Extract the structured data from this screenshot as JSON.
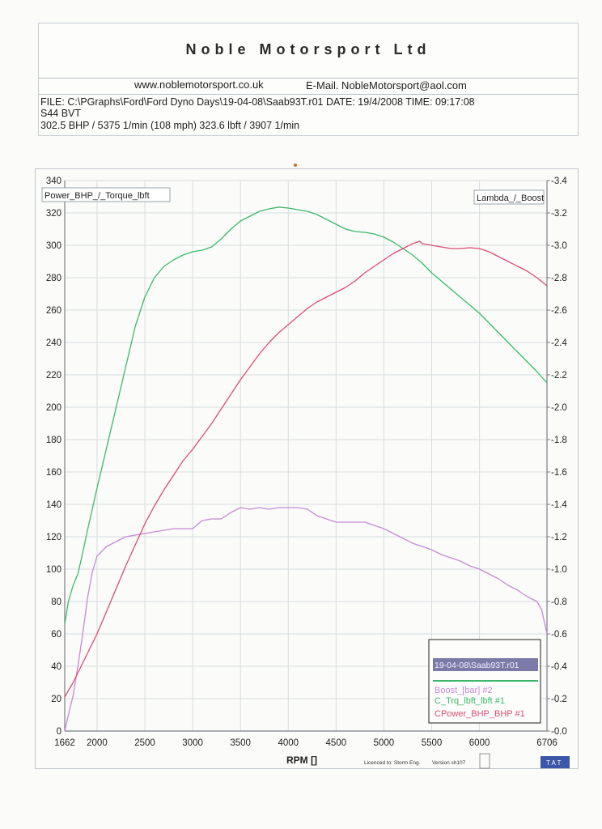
{
  "header": {
    "company": "Noble Motorsport Ltd",
    "website": "www.noblemotorsport.co.uk",
    "email": "E-Mail. NobleMotorsport@aol.com",
    "file_line": "FILE: C:\\PGraphs\\Ford\\Ford Dyno Days\\19-04-08\\Saab93T.r01  DATE: 19/4/2008  TIME: 09:17:08",
    "vehicle": "S44 BVT",
    "summary": "302.5 BHP / 5375 1/min (108 mph)    323.6 lbft / 3907 1/min"
  },
  "chart_data": {
    "type": "line",
    "left_axis_label": "Power_BHP_/_Torque_lbft",
    "right_axis_label": "Lambda_/_Boost",
    "xlabel": "RPM  []",
    "xlim": [
      1662,
      6706
    ],
    "x_ticks": [
      "1662",
      "2000",
      "2500",
      "3000",
      "3500",
      "4000",
      "4500",
      "5000",
      "5500",
      "6000",
      "6706"
    ],
    "x_tick_values": [
      1662,
      2000,
      2500,
      3000,
      3500,
      4000,
      4500,
      5000,
      5500,
      6000,
      6706
    ],
    "ylim_left": [
      0,
      340
    ],
    "y_ticks_left": [
      "0",
      "20",
      "40",
      "60",
      "80",
      "100",
      "120",
      "140",
      "160",
      "180",
      "200",
      "220",
      "240",
      "260",
      "280",
      "300",
      "320",
      "340"
    ],
    "ylim_right": [
      0,
      -3.4
    ],
    "y_ticks_right": [
      "-0.0",
      "-0.2",
      "-0.4",
      "-0.6",
      "-0.8",
      "-1.0",
      "-1.2",
      "-1.4",
      "-1.6",
      "-1.8",
      "-2.0",
      "-2.2",
      "-2.4",
      "-2.6",
      "-2.8",
      "-3.0",
      "-3.2",
      "-3.4"
    ],
    "grid": true,
    "legend_position": "bottom-right",
    "legend_title": "19-04-08\\Saab93T.r01",
    "series": [
      {
        "name": "Boost_[bar] #2",
        "color": "#c58ad6",
        "x": [
          1662,
          1700,
          1750,
          1800,
          1850,
          1900,
          1950,
          2000,
          2100,
          2200,
          2300,
          2400,
          2500,
          2600,
          2700,
          2800,
          2900,
          3000,
          3100,
          3200,
          3300,
          3400,
          3500,
          3600,
          3700,
          3800,
          3900,
          4000,
          4100,
          4200,
          4300,
          4400,
          4500,
          4600,
          4700,
          4800,
          4900,
          5000,
          5100,
          5200,
          5300,
          5400,
          5500,
          5600,
          5700,
          5800,
          5900,
          6000,
          6100,
          6200,
          6300,
          6400,
          6500,
          6600,
          6650,
          6706
        ],
        "values": [
          -0.0,
          -0.1,
          -0.22,
          -0.4,
          -0.6,
          -0.82,
          -0.98,
          -1.08,
          -1.14,
          -1.17,
          -1.2,
          -1.21,
          -1.22,
          -1.23,
          -1.24,
          -1.25,
          -1.25,
          -1.25,
          -1.3,
          -1.31,
          -1.31,
          -1.35,
          -1.38,
          -1.37,
          -1.38,
          -1.37,
          -1.38,
          -1.38,
          -1.38,
          -1.37,
          -1.33,
          -1.31,
          -1.29,
          -1.29,
          -1.29,
          -1.29,
          -1.27,
          -1.25,
          -1.22,
          -1.19,
          -1.16,
          -1.14,
          -1.12,
          -1.09,
          -1.07,
          -1.05,
          -1.02,
          -1.0,
          -0.97,
          -0.94,
          -0.9,
          -0.87,
          -0.83,
          -0.8,
          -0.75,
          -0.6
        ]
      },
      {
        "name": "C_Trq_lbft_lbft #1",
        "color": "#3db86b",
        "x": [
          1662,
          1700,
          1750,
          1800,
          1850,
          1900,
          1950,
          2000,
          2100,
          2200,
          2300,
          2400,
          2500,
          2600,
          2700,
          2800,
          2900,
          3000,
          3100,
          3200,
          3300,
          3400,
          3500,
          3600,
          3700,
          3800,
          3900,
          4000,
          4100,
          4200,
          4300,
          4400,
          4500,
          4600,
          4700,
          4800,
          4900,
          5000,
          5100,
          5200,
          5300,
          5400,
          5500,
          5600,
          5700,
          5800,
          5900,
          6000,
          6100,
          6200,
          6300,
          6400,
          6500,
          6600,
          6706
        ],
        "values": [
          66,
          80,
          90,
          97,
          110,
          124,
          137,
          150,
          175,
          200,
          225,
          250,
          268,
          280,
          287,
          291,
          294,
          296,
          297,
          299,
          304,
          310,
          315,
          318,
          321,
          322.5,
          323.6,
          323,
          322,
          321,
          319,
          316,
          313,
          310,
          308.5,
          308,
          307,
          305,
          302,
          298,
          294,
          289,
          283,
          278,
          273,
          268,
          263,
          258,
          252,
          246,
          240,
          234,
          228,
          222,
          215
        ]
      },
      {
        "name": "CPower_BHP_BHP #1",
        "color": "#d94d72",
        "x": [
          1662,
          1700,
          1750,
          1800,
          1850,
          1900,
          1950,
          2000,
          2100,
          2200,
          2300,
          2400,
          2500,
          2600,
          2700,
          2800,
          2900,
          3000,
          3100,
          3200,
          3300,
          3400,
          3500,
          3600,
          3700,
          3800,
          3900,
          4000,
          4100,
          4200,
          4300,
          4400,
          4500,
          4600,
          4700,
          4800,
          4900,
          5000,
          5100,
          5200,
          5300,
          5375,
          5400,
          5500,
          5600,
          5700,
          5800,
          5900,
          6000,
          6100,
          6200,
          6300,
          6400,
          6500,
          6600,
          6706
        ],
        "values": [
          21,
          25,
          30,
          36,
          42,
          48,
          54,
          60,
          74,
          88,
          102,
          115,
          128,
          139,
          149,
          158,
          167,
          174,
          182,
          190,
          199,
          208,
          217,
          225,
          233,
          240,
          246,
          251,
          256,
          261,
          265,
          268,
          271,
          274,
          278,
          283,
          287,
          291,
          295,
          298,
          301,
          302.5,
          301,
          300,
          299,
          298,
          298,
          298.5,
          298,
          296,
          293,
          290,
          287,
          284,
          280,
          275
        ]
      }
    ]
  },
  "footer": {
    "licence": "Licenced to: Storm Eng.",
    "version": "Version sh107",
    "badge": "T A T"
  },
  "colors": {
    "grid": "#d7dde1",
    "axis": "#7a7f86",
    "legend_title_bg": "#7c7ba8",
    "badge_bg": "#3e56a8"
  }
}
